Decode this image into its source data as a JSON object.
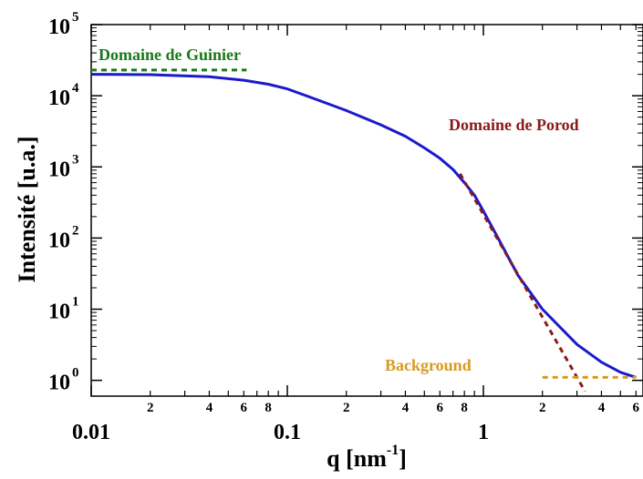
{
  "chart_data": {
    "type": "line",
    "title": "",
    "xlabel": "q [nm",
    "xlabel_exponent": "-1",
    "xlabel_suffix": "]",
    "ylabel": "Intensité [u.a.]",
    "x_scale": "log",
    "y_scale": "log",
    "xlim": [
      0.01,
      6
    ],
    "ylim": [
      0.6,
      100000
    ],
    "grid": false,
    "x_major_ticks": [
      {
        "value": 0.01,
        "label": "0.01"
      },
      {
        "value": 0.1,
        "label": "0.1"
      },
      {
        "value": 1,
        "label": "1"
      }
    ],
    "x_minor_ticks": [
      {
        "value": 0.02,
        "label": "2"
      },
      {
        "value": 0.03,
        "label": ""
      },
      {
        "value": 0.04,
        "label": "4"
      },
      {
        "value": 0.05,
        "label": ""
      },
      {
        "value": 0.06,
        "label": "6"
      },
      {
        "value": 0.07,
        "label": ""
      },
      {
        "value": 0.08,
        "label": "8"
      },
      {
        "value": 0.09,
        "label": ""
      },
      {
        "value": 0.2,
        "label": "2"
      },
      {
        "value": 0.3,
        "label": ""
      },
      {
        "value": 0.4,
        "label": "4"
      },
      {
        "value": 0.5,
        "label": ""
      },
      {
        "value": 0.6,
        "label": "6"
      },
      {
        "value": 0.7,
        "label": ""
      },
      {
        "value": 0.8,
        "label": "8"
      },
      {
        "value": 0.9,
        "label": ""
      },
      {
        "value": 2,
        "label": "2"
      },
      {
        "value": 3,
        "label": ""
      },
      {
        "value": 4,
        "label": "4"
      },
      {
        "value": 5,
        "label": ""
      },
      {
        "value": 6,
        "label": "6"
      }
    ],
    "y_ticks": [
      {
        "value": 1,
        "base": "10",
        "exp": "0"
      },
      {
        "value": 10,
        "base": "10",
        "exp": "1"
      },
      {
        "value": 100,
        "base": "10",
        "exp": "2"
      },
      {
        "value": 1000,
        "base": "10",
        "exp": "3"
      },
      {
        "value": 10000,
        "base": "10",
        "exp": "4"
      },
      {
        "value": 100000,
        "base": "10",
        "exp": "5"
      }
    ],
    "series": [
      {
        "color": "#1a1acc",
        "style": "solid",
        "x": [
          0.01,
          0.02,
          0.04,
          0.06,
          0.08,
          0.1,
          0.13,
          0.2,
          0.3,
          0.4,
          0.5,
          0.6,
          0.7,
          0.8,
          0.9,
          1.0,
          1.2,
          1.5,
          2.0,
          3.0,
          4.0,
          5.0,
          6.0
        ],
        "y": [
          20000,
          19800,
          18500,
          16500,
          14500,
          12500,
          9600,
          6200,
          3900,
          2700,
          1850,
          1320,
          920,
          600,
          400,
          240,
          95,
          30,
          10,
          3.2,
          1.8,
          1.3,
          1.1
        ]
      },
      {
        "color": "#1a7a1a",
        "style": "dashed",
        "x": [
          0.01,
          0.062
        ],
        "y": [
          23000,
          23000
        ]
      },
      {
        "color": "#8b1a1a",
        "style": "dashed",
        "x": [
          0.76,
          3.3
        ],
        "y": [
          800,
          0.7
        ]
      },
      {
        "color": "#d99a20",
        "style": "dashed",
        "x": [
          2.0,
          6.0
        ],
        "y": [
          1.1,
          1.1
        ]
      }
    ],
    "annotations": [
      {
        "text": "Domaine de Guinier",
        "color": "#1a7a1a"
      },
      {
        "text": "Domaine de Porod",
        "color": "#8b1a1a"
      },
      {
        "text": "Background",
        "color": "#d99a20"
      }
    ]
  }
}
